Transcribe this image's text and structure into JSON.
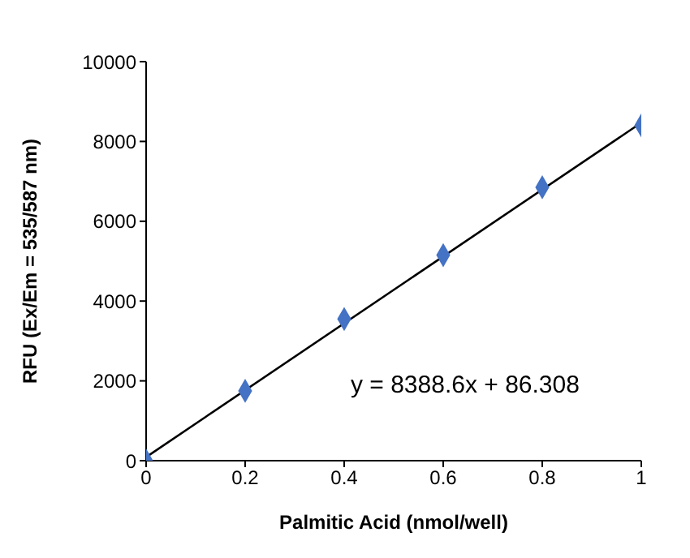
{
  "chart_data": {
    "type": "scatter",
    "xlabel": "Palmitic Acid (nmol/well)",
    "ylabel": "RFU (Ex/Em = 535/587 nm)",
    "x": [
      0,
      0.2,
      0.4,
      0.6,
      0.8,
      1
    ],
    "series": [
      {
        "color": "#4472c4",
        "values": [
          0,
          1750,
          3550,
          5150,
          6850,
          8400
        ],
        "marker": "diamond"
      },
      {
        "type": "line",
        "color": "#000000",
        "x": [
          0,
          1
        ],
        "values": [
          90,
          8470
        ],
        "marker": "none"
      }
    ],
    "xlim": [
      0,
      1
    ],
    "xticks": [
      0,
      0.2,
      0.4,
      0.6,
      0.8,
      1
    ],
    "ylim": [
      0,
      10000
    ],
    "yticks": [
      0,
      2000,
      4000,
      6000,
      8000,
      10000
    ],
    "annotations": [
      "y = 8388.6x + 86.308"
    ]
  }
}
